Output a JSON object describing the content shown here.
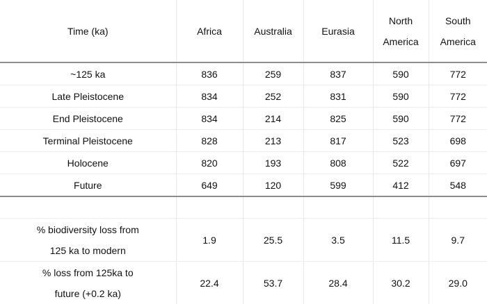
{
  "headers": {
    "time": "Time (ka)",
    "africa": "Africa",
    "australia": "Australia",
    "eurasia": "Eurasia",
    "north_america_l1": "North",
    "north_america_l2": "America",
    "south_america_l1": "South",
    "south_america_l2": "America"
  },
  "rows": [
    {
      "label": "~125 ka",
      "africa": "836",
      "australia": "259",
      "eurasia": "837",
      "north_america": "590",
      "south_america": "772"
    },
    {
      "label": "Late Pleistocene",
      "africa": "834",
      "australia": "252",
      "eurasia": "831",
      "north_america": "590",
      "south_america": "772"
    },
    {
      "label": "End Pleistocene",
      "africa": "834",
      "australia": "214",
      "eurasia": "825",
      "north_america": "590",
      "south_america": "772"
    },
    {
      "label": "Terminal Pleistocene",
      "africa": "828",
      "australia": "213",
      "eurasia": "817",
      "north_america": "523",
      "south_america": "698"
    },
    {
      "label": "Holocene",
      "africa": "820",
      "australia": "193",
      "eurasia": "808",
      "north_america": "522",
      "south_america": "697"
    },
    {
      "label": "Future",
      "africa": "649",
      "australia": "120",
      "eurasia": "599",
      "north_america": "412",
      "south_america": "548"
    }
  ],
  "summary": [
    {
      "label_l1": "% biodiversity loss from",
      "label_l2": "125 ka to modern",
      "africa": "1.9",
      "australia": "25.5",
      "eurasia": "3.5",
      "north_america": "11.5",
      "south_america": "9.7"
    },
    {
      "label_l1": "% loss from 125ka to",
      "label_l2": "future (+0.2 ka)",
      "africa": "22.4",
      "australia": "53.7",
      "eurasia": "28.4",
      "north_america": "30.2",
      "south_america": "29.0"
    }
  ]
}
